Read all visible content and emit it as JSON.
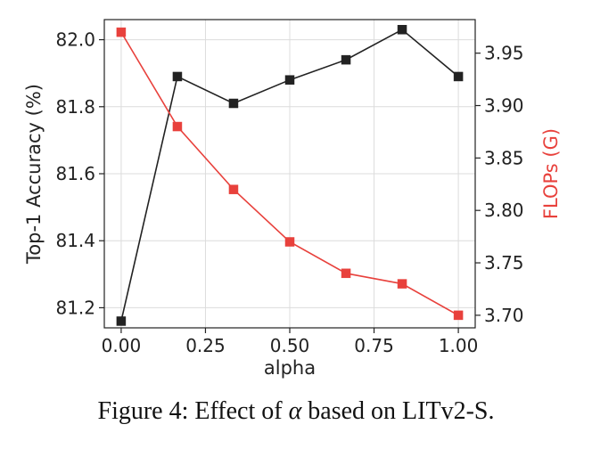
{
  "chart_data": {
    "type": "line",
    "x": [
      0.0,
      0.1667,
      0.3333,
      0.5,
      0.6667,
      0.8333,
      1.0
    ],
    "xlabel": "alpha",
    "x_ticks": [
      "0.00",
      "0.25",
      "0.50",
      "0.75",
      "1.00"
    ],
    "x_tick_values": [
      0.0,
      0.25,
      0.5,
      0.75,
      1.0
    ],
    "xlim": [
      -0.05,
      1.05
    ],
    "grid": true,
    "left_axis": {
      "label": "Top-1 Accuracy (%)",
      "ylim": [
        81.14,
        82.06
      ],
      "ticks": [
        "81.2",
        "81.4",
        "81.6",
        "81.8",
        "82.0"
      ],
      "tick_values": [
        81.2,
        81.4,
        81.6,
        81.8,
        82.0
      ],
      "color": "#222222"
    },
    "right_axis": {
      "label": "FLOPs (G)",
      "ylim": [
        3.688,
        3.982
      ],
      "ticks": [
        "3.70",
        "3.75",
        "3.80",
        "3.85",
        "3.90",
        "3.95"
      ],
      "tick_values": [
        3.7,
        3.75,
        3.8,
        3.85,
        3.9,
        3.95
      ],
      "color": "#e8413c"
    },
    "series": [
      {
        "axis": "left",
        "color": "#222222",
        "values": [
          81.16,
          81.89,
          81.81,
          81.88,
          81.94,
          82.03,
          81.89
        ]
      },
      {
        "axis": "right",
        "color": "#e8413c",
        "values": [
          3.97,
          3.88,
          3.82,
          3.77,
          3.74,
          3.73,
          3.7
        ]
      }
    ]
  },
  "caption": {
    "prefix": "Figure 4: Effect of ",
    "symbol": "α",
    "suffix": " based on LITv2-S."
  }
}
